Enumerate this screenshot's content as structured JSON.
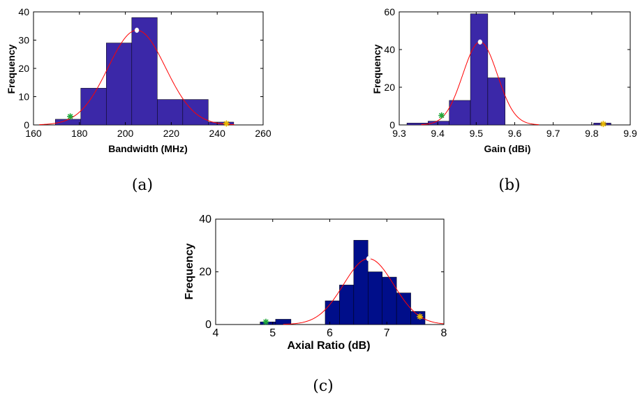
{
  "chart_data": [
    {
      "type": "bar",
      "panel": "a",
      "caption": "(a)",
      "xlabel": "Bandwidth (MHz)",
      "ylabel": "Frequency",
      "xlim": [
        160,
        260
      ],
      "ylim": [
        0,
        40
      ],
      "xticks": [
        160,
        180,
        200,
        220,
        240,
        260
      ],
      "yticks": [
        0,
        10,
        20,
        30,
        40
      ],
      "bin_edges": [
        169.5,
        180.6,
        191.7,
        202.8,
        213.9,
        225.0,
        236.1,
        247.2
      ],
      "values": [
        2,
        13,
        29,
        38,
        9,
        9,
        1
      ],
      "bar_color": "#3b28a8",
      "fit_curve": {
        "mean": 205.0,
        "sigma": 12.5,
        "peak": 33.5,
        "color": "#ff0000"
      },
      "markers": [
        {
          "x": 176.0,
          "y": 3,
          "shape": "star",
          "color": "#22a83a"
        },
        {
          "x": 205.0,
          "y": 33.5,
          "shape": "dot",
          "color": "#ffffff"
        },
        {
          "x": 244.0,
          "y": 0.5,
          "shape": "star",
          "color": "#e8b800"
        }
      ]
    },
    {
      "type": "bar",
      "panel": "b",
      "caption": "(b)",
      "xlabel": "Gain (dBi)",
      "ylabel": "Frequency",
      "xlim": [
        9.3,
        9.9
      ],
      "ylim": [
        0,
        60
      ],
      "xticks": [
        9.3,
        9.4,
        9.5,
        9.6,
        9.7,
        9.8,
        9.9
      ],
      "yticks": [
        0,
        20,
        40,
        60
      ],
      "bins": [
        {
          "from": 9.32,
          "to": 9.375,
          "value": 1
        },
        {
          "from": 9.375,
          "to": 9.43,
          "value": 2
        },
        {
          "from": 9.43,
          "to": 9.485,
          "value": 13
        },
        {
          "from": 9.485,
          "to": 9.53,
          "value": 59
        },
        {
          "from": 9.53,
          "to": 9.575,
          "value": 25
        },
        {
          "from": 9.805,
          "to": 9.85,
          "value": 1
        }
      ],
      "bar_color": "#3b28a8",
      "fit_curve": {
        "mean": 9.51,
        "sigma": 0.045,
        "peak": 44,
        "color": "#ff0000"
      },
      "markers": [
        {
          "x": 9.41,
          "y": 5,
          "shape": "star",
          "color": "#22a83a"
        },
        {
          "x": 9.51,
          "y": 44,
          "shape": "dot",
          "color": "#ffffff"
        },
        {
          "x": 9.83,
          "y": 0.5,
          "shape": "star",
          "color": "#e8b800"
        }
      ]
    },
    {
      "type": "bar",
      "panel": "c",
      "caption": "(c)",
      "xlabel": "Axial Ratio (dB)",
      "ylabel": "Frequency",
      "xlim": [
        4,
        8
      ],
      "ylim": [
        0,
        40
      ],
      "xticks": [
        4,
        5,
        6,
        7,
        8
      ],
      "yticks": [
        0,
        20,
        40
      ],
      "bins": [
        {
          "from": 4.78,
          "to": 5.05,
          "value": 1
        },
        {
          "from": 5.05,
          "to": 5.32,
          "value": 2
        },
        {
          "from": 5.92,
          "to": 6.17,
          "value": 9
        },
        {
          "from": 6.17,
          "to": 6.42,
          "value": 15
        },
        {
          "from": 6.42,
          "to": 6.67,
          "value": 32
        },
        {
          "from": 6.67,
          "to": 6.92,
          "value": 20
        },
        {
          "from": 6.92,
          "to": 7.17,
          "value": 18
        },
        {
          "from": 7.17,
          "to": 7.42,
          "value": 12
        },
        {
          "from": 7.42,
          "to": 7.67,
          "value": 5
        }
      ],
      "bar_color": "#000e8a",
      "fit_curve": {
        "mean": 6.68,
        "sigma": 0.44,
        "peak": 25,
        "color": "#ff0000"
      },
      "markers": [
        {
          "x": 4.88,
          "y": 1,
          "shape": "star",
          "color": "#22a83a"
        },
        {
          "x": 6.68,
          "y": 25,
          "shape": "dot",
          "color": "#ffffff"
        },
        {
          "x": 7.58,
          "y": 3,
          "shape": "star",
          "color": "#e8b800"
        }
      ]
    }
  ]
}
